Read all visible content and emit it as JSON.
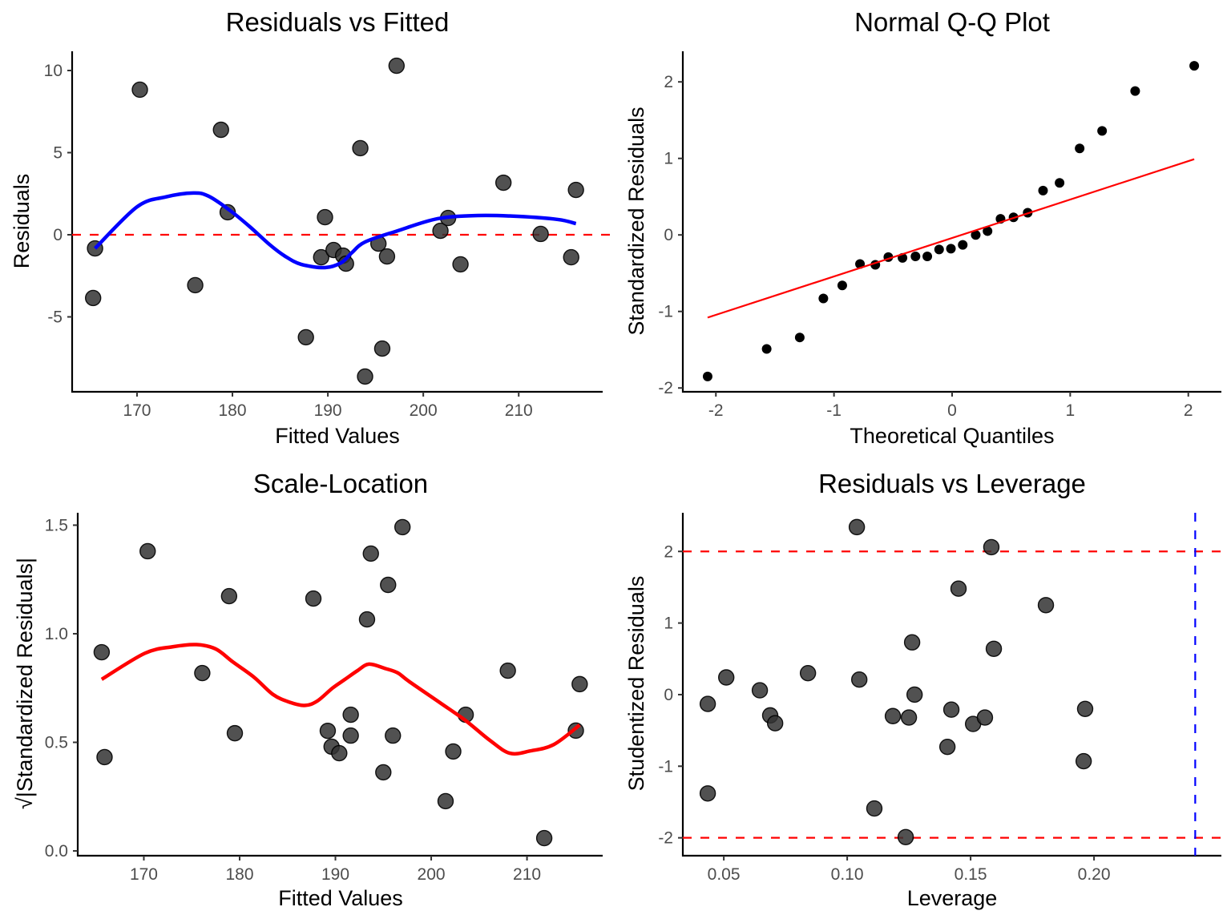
{
  "chart_data": [
    {
      "id": "residuals-vs-fitted",
      "type": "scatter",
      "title": "Residuals vs Fitted",
      "xlabel": "Fitted Values",
      "ylabel": "Residuals",
      "xlim": [
        163.2,
        218.8
      ],
      "ylim": [
        -9.56,
        11.17
      ],
      "xticks": [
        170,
        180,
        190,
        200,
        210
      ],
      "yticks": [
        -5,
        0,
        5,
        10
      ],
      "point_color": "#333333",
      "points": [
        [
          165.4,
          -3.85
        ],
        [
          165.6,
          -0.83
        ],
        [
          170.3,
          8.83
        ],
        [
          176.1,
          -3.07
        ],
        [
          178.8,
          6.39
        ],
        [
          179.5,
          1.37
        ],
        [
          187.7,
          -6.24
        ],
        [
          189.3,
          -1.37
        ],
        [
          189.7,
          1.07
        ],
        [
          190.6,
          -0.93
        ],
        [
          191.6,
          -1.27
        ],
        [
          191.9,
          -1.76
        ],
        [
          193.4,
          5.27
        ],
        [
          193.9,
          -8.63
        ],
        [
          195.3,
          -0.54
        ],
        [
          195.7,
          -6.93
        ],
        [
          196.2,
          -1.32
        ],
        [
          197.2,
          10.29
        ],
        [
          201.8,
          0.24
        ],
        [
          202.6,
          1.02
        ],
        [
          203.9,
          -1.8
        ],
        [
          208.4,
          3.17
        ],
        [
          212.3,
          0.05
        ],
        [
          215.5,
          -1.37
        ],
        [
          216.0,
          2.73
        ]
      ],
      "smooth_line": {
        "color": "#0000ff",
        "points": [
          [
            165.6,
            -0.83
          ],
          [
            170.0,
            1.7
          ],
          [
            173.0,
            2.3
          ],
          [
            175.9,
            2.54
          ],
          [
            177.5,
            2.35
          ],
          [
            179.7,
            1.5
          ],
          [
            181.8,
            0.5
          ],
          [
            183.9,
            -0.6
          ],
          [
            185.5,
            -1.3
          ],
          [
            187.2,
            -1.8
          ],
          [
            189.7,
            -2.0
          ],
          [
            191.4,
            -1.7
          ],
          [
            192.5,
            -1.1
          ],
          [
            193.9,
            -0.44
          ],
          [
            197.3,
            0.24
          ],
          [
            201.5,
            0.98
          ],
          [
            205.7,
            1.17
          ],
          [
            209.9,
            1.12
          ],
          [
            214.1,
            0.93
          ],
          [
            216.0,
            0.68
          ]
        ]
      },
      "hlines": [
        {
          "y": 0,
          "color": "#ff0000",
          "style": "dashed"
        }
      ],
      "vlines": []
    },
    {
      "id": "normal-qq",
      "type": "scatter",
      "title": "Normal Q-Q Plot",
      "xlabel": "Theoretical Quantiles",
      "ylabel": "Standardized Residuals",
      "xlim": [
        -2.28,
        2.28
      ],
      "ylim": [
        -2.05,
        2.4
      ],
      "xticks": [
        -2,
        -1,
        0,
        1,
        2
      ],
      "yticks": [
        -2,
        -1,
        0,
        1,
        2
      ],
      "point_color": "#000000",
      "points": [
        [
          -2.07,
          -1.85
        ],
        [
          -1.57,
          -1.49
        ],
        [
          -1.29,
          -1.34
        ],
        [
          -1.09,
          -0.83
        ],
        [
          -0.93,
          -0.66
        ],
        [
          -0.78,
          -0.38
        ],
        [
          -0.65,
          -0.39
        ],
        [
          -0.54,
          -0.29
        ],
        [
          -0.42,
          -0.3
        ],
        [
          -0.31,
          -0.28
        ],
        [
          -0.21,
          -0.28
        ],
        [
          -0.11,
          -0.19
        ],
        [
          -0.01,
          -0.18
        ],
        [
          0.09,
          -0.13
        ],
        [
          0.2,
          0.0
        ],
        [
          0.3,
          0.05
        ],
        [
          0.41,
          0.21
        ],
        [
          0.52,
          0.23
        ],
        [
          0.64,
          0.29
        ],
        [
          0.77,
          0.58
        ],
        [
          0.91,
          0.68
        ],
        [
          1.08,
          1.13
        ],
        [
          1.27,
          1.36
        ],
        [
          1.55,
          1.88
        ],
        [
          2.05,
          2.21
        ]
      ],
      "smooth_line": {
        "color": "#ff0000",
        "points": [
          [
            -2.07,
            -1.08
          ],
          [
            2.05,
            0.99
          ]
        ]
      },
      "hlines": [],
      "vlines": []
    },
    {
      "id": "scale-location",
      "type": "scatter",
      "title": "Scale-Location",
      "xlabel": "Fitted Values",
      "ylabel": "√|Standardized Residuals|",
      "xlim": [
        163.1,
        217.9
      ],
      "ylim": [
        -0.022,
        1.557
      ],
      "xticks": [
        170,
        180,
        190,
        200,
        210
      ],
      "yticks": [
        0.0,
        0.5,
        1.0,
        1.5
      ],
      "ytick_labels": [
        "0.0",
        "0.5",
        "1.0",
        "1.5"
      ],
      "point_color": "#333333",
      "points": [
        [
          165.6,
          0.915
        ],
        [
          165.9,
          0.432
        ],
        [
          170.4,
          1.38
        ],
        [
          176.1,
          0.819
        ],
        [
          178.9,
          1.173
        ],
        [
          179.5,
          0.542
        ],
        [
          187.7,
          1.162
        ],
        [
          189.2,
          0.553
        ],
        [
          189.6,
          0.48
        ],
        [
          190.4,
          0.45
        ],
        [
          191.6,
          0.627
        ],
        [
          191.6,
          0.531
        ],
        [
          193.3,
          1.066
        ],
        [
          193.7,
          1.369
        ],
        [
          195.0,
          0.362
        ],
        [
          195.5,
          1.225
        ],
        [
          196.0,
          0.531
        ],
        [
          197.0,
          1.491
        ],
        [
          201.5,
          0.229
        ],
        [
          202.3,
          0.458
        ],
        [
          203.6,
          0.627
        ],
        [
          208.0,
          0.83
        ],
        [
          211.8,
          0.059
        ],
        [
          215.1,
          0.554
        ],
        [
          215.5,
          0.768
        ]
      ],
      "smooth_line": {
        "color": "#ff0000",
        "points": [
          [
            165.6,
            0.79
          ],
          [
            170.1,
            0.91
          ],
          [
            173.0,
            0.94
          ],
          [
            175.5,
            0.95
          ],
          [
            177.5,
            0.93
          ],
          [
            179.3,
            0.87
          ],
          [
            181.5,
            0.8
          ],
          [
            183.5,
            0.72
          ],
          [
            185.2,
            0.685
          ],
          [
            186.8,
            0.67
          ],
          [
            188.1,
            0.69
          ],
          [
            189.7,
            0.75
          ],
          [
            191.0,
            0.79
          ],
          [
            192.3,
            0.83
          ],
          [
            193.5,
            0.86
          ],
          [
            195.2,
            0.84
          ],
          [
            196.5,
            0.82
          ],
          [
            197.7,
            0.78
          ],
          [
            201.0,
            0.68
          ],
          [
            203.6,
            0.6
          ],
          [
            206.1,
            0.51
          ],
          [
            208.2,
            0.45
          ],
          [
            210.3,
            0.46
          ],
          [
            212.8,
            0.49
          ],
          [
            215.5,
            0.58
          ]
        ]
      },
      "hlines": [],
      "vlines": []
    },
    {
      "id": "residuals-vs-leverage",
      "type": "scatter",
      "title": "Residuals vs Leverage",
      "xlabel": "Leverage",
      "ylabel": "Studentized Residuals",
      "xlim": [
        0.0334,
        0.2516
      ],
      "ylim": [
        -2.25,
        2.54
      ],
      "xticks": [
        0.05,
        0.1,
        0.15,
        0.2
      ],
      "xtick_labels": [
        "0.05",
        "0.10",
        "0.15",
        "0.20"
      ],
      "yticks": [
        -2,
        -1,
        0,
        1,
        2
      ],
      "point_color": "#333333",
      "points": [
        [
          0.0435,
          -0.13
        ],
        [
          0.0435,
          -1.38
        ],
        [
          0.051,
          0.24
        ],
        [
          0.0646,
          0.06
        ],
        [
          0.0688,
          -0.29
        ],
        [
          0.0708,
          -0.4
        ],
        [
          0.0841,
          0.3
        ],
        [
          0.1039,
          2.34
        ],
        [
          0.1049,
          0.21
        ],
        [
          0.111,
          -1.59
        ],
        [
          0.1185,
          -0.3
        ],
        [
          0.1237,
          -1.99
        ],
        [
          0.125,
          -0.32
        ],
        [
          0.1263,
          0.73
        ],
        [
          0.1273,
          0.0
        ],
        [
          0.1406,
          -0.73
        ],
        [
          0.1422,
          -0.21
        ],
        [
          0.1451,
          1.48
        ],
        [
          0.151,
          -0.41
        ],
        [
          0.1558,
          -0.32
        ],
        [
          0.1584,
          2.06
        ],
        [
          0.1594,
          0.64
        ],
        [
          0.1805,
          1.25
        ],
        [
          0.1958,
          -0.93
        ],
        [
          0.1964,
          -0.2
        ]
      ],
      "smooth_line": null,
      "hlines": [
        {
          "y": 2,
          "color": "#ff0000",
          "style": "dashed"
        },
        {
          "y": -2,
          "color": "#ff0000",
          "style": "dashed"
        }
      ],
      "vlines": [
        {
          "x": 0.241,
          "color": "#0000ff",
          "style": "dashed"
        }
      ]
    }
  ]
}
